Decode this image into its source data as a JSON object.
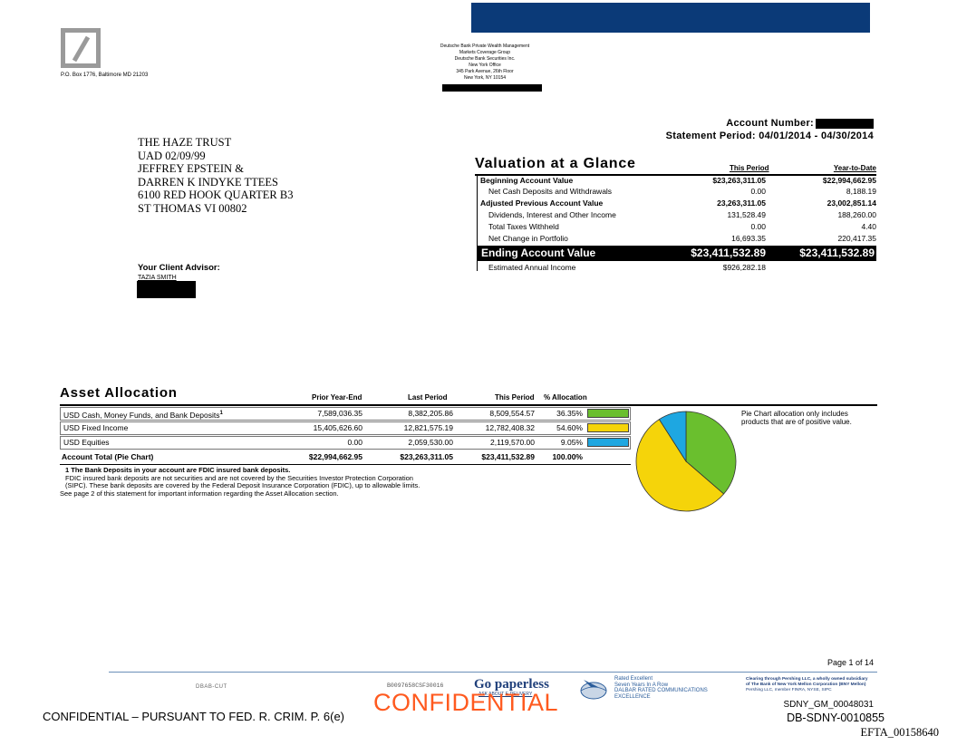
{
  "header": {
    "po_box": "P.O. Box 1776, Baltimore MD 21203",
    "bank_lines": [
      "Deutsche Bank Private Wealth Management",
      "Markets Coverage Group",
      "Deutsche Bank Securities Inc.",
      "New York Office",
      "345 Park Avenue, 26th Floor",
      "New York, NY 10154"
    ],
    "brand_color": "#0b3a78"
  },
  "account": {
    "number_label": "Account Number:",
    "period_label": "Statement Period: 04/01/2014 - 04/30/2014"
  },
  "client": {
    "lines": [
      "THE HAZE TRUST",
      "UAD 02/09/99",
      "JEFFREY EPSTEIN &",
      "DARREN K INDYKE TTEES",
      "6100 RED HOOK QUARTER B3",
      "ST THOMAS VI 00802"
    ],
    "advisor_label": "Your Client Advisor:",
    "advisor_name": "TAZIA SMITH"
  },
  "valuation": {
    "title": "Valuation at a Glance",
    "col1": "This Period",
    "col2": "Year-to-Date",
    "rows": [
      {
        "label": "Beginning Account Value",
        "this_period": "$23,263,311.05",
        "ytd": "$22,994,662.95",
        "bold": true
      },
      {
        "label": "Net Cash Deposits and Withdrawals",
        "this_period": "0.00",
        "ytd": "8,188.19",
        "bold": false
      },
      {
        "label": "Adjusted Previous Account Value",
        "this_period": "23,263,311.05",
        "ytd": "23,002,851.14",
        "bold": true
      },
      {
        "label": "Dividends, Interest and Other Income",
        "this_period": "131,528.49",
        "ytd": "188,260.00",
        "bold": false
      },
      {
        "label": "Total Taxes Withheld",
        "this_period": "0.00",
        "ytd": "4.40",
        "bold": false
      },
      {
        "label": "Net Change in Portfolio",
        "this_period": "16,693.35",
        "ytd": "220,417.35",
        "bold": false
      }
    ],
    "ending": {
      "label": "Ending Account Value",
      "this_period": "$23,411,532.89",
      "ytd": "$23,411,532.89"
    },
    "annual_income": {
      "label": "Estimated Annual Income",
      "value": "$926,282.18"
    }
  },
  "asset_allocation": {
    "title": "Asset Allocation",
    "headers": [
      "Prior Year-End",
      "Last Period",
      "This Period",
      "% Allocation"
    ],
    "rows": [
      {
        "label": "USD Cash, Money Funds, and Bank Deposits",
        "sup": "1",
        "prior": "7,589,036.35",
        "last": "8,382,205.86",
        "this": "8,509,554.57",
        "pct": "36.35%",
        "color": "#6abf2e"
      },
      {
        "label": "USD Fixed Income",
        "sup": "",
        "prior": "15,405,626.60",
        "last": "12,821,575.19",
        "this": "12,782,408.32",
        "pct": "54.60%",
        "color": "#f5d40a"
      },
      {
        "label": "USD Equities",
        "sup": "",
        "prior": "0.00",
        "last": "2,059,530.00",
        "this": "2,119,570.00",
        "pct": "9.05%",
        "color": "#1ea7e1"
      }
    ],
    "total": {
      "label": "Account Total (Pie Chart)",
      "prior": "$22,994,662.95",
      "last": "$23,263,311.05",
      "this": "$23,411,532.89",
      "pct": "100.00%"
    },
    "footnote": [
      "1  The Bank Deposits in your account are FDIC insured bank deposits.",
      "    FDIC insured bank deposits are not securities and are not covered by the Securities Investor Protection Corporation",
      "    (SIPC). These bank deposits are covered by the Federal Deposit Insurance Corporation (FDIC), up to allowable limits.",
      "See page 2 of this statement for important information regarding the Asset Allocation section."
    ],
    "pie_note": [
      "Pie Chart allocation only includes",
      "products that are of positive value."
    ],
    "pie": [
      {
        "name": "USD Cash, Money Funds, and Bank Deposits",
        "pct": 36.35,
        "color": "#6abf2e"
      },
      {
        "name": "USD Fixed Income",
        "pct": 54.6,
        "color": "#f5d40a"
      },
      {
        "name": "USD Equities",
        "pct": 9.05,
        "color": "#1ea7e1"
      }
    ]
  },
  "footer": {
    "page": "Page 1 of 14",
    "dbab": "DBAB-CUT",
    "code": "B0097658CSF30016",
    "go_paperless": "Go paperless",
    "go_paperless_sub": "ASK ABOUT E-DELIVERY",
    "dalbar": [
      "Rated Excellent",
      "Seven Years In A Row",
      "DALBAR RATED COMMUNICATIONS",
      "EXCELLENCE"
    ],
    "pershing": [
      "Clearing through Pershing LLC, a wholly owned subsidiary",
      "of The Bank of New York Mellon Corporation (BNY Mellon)",
      "Pershing LLC, member FINRA, NYSE, SIPC"
    ],
    "confidential_left": "CONFIDENTIAL – PURSUANT TO FED. R. CRIM. P. 6(e)",
    "confidential_big": "CONFIDENTIAL",
    "sdny1": "SDNY_GM_00048031",
    "sdny2": "DB-SDNY-0010855",
    "efta": "EFTA_00158640"
  }
}
